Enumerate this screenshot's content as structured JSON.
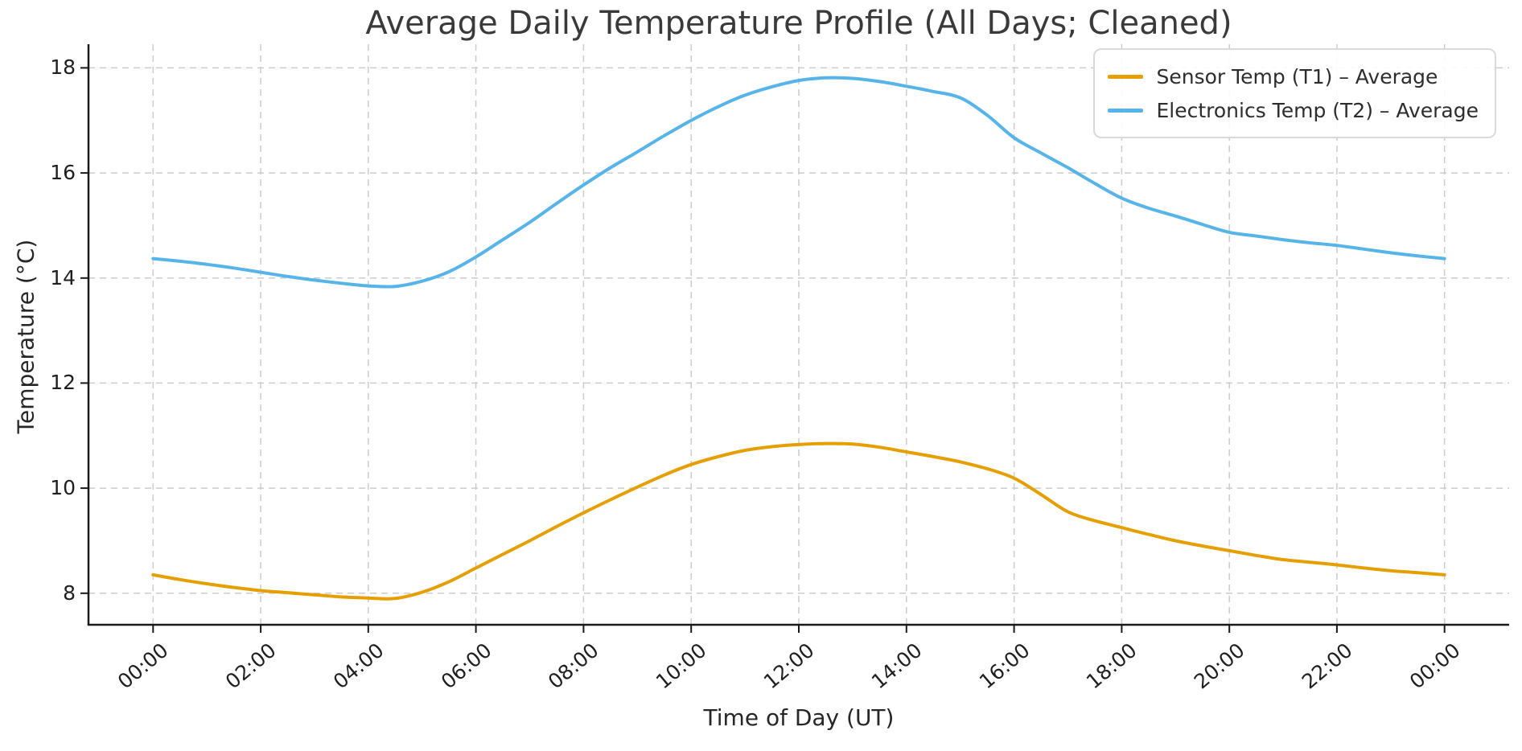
{
  "chart_data": {
    "type": "line",
    "title": "Average Daily Temperature Profile (All Days; Cleaned)",
    "xlabel": "Time of Day (UT)",
    "ylabel": "Temperature (°C)",
    "x_unit": "hours_of_day",
    "xlim": [
      -1.2,
      25.2
    ],
    "ylim": [
      7.4,
      18.45
    ],
    "grid": {
      "show": true,
      "color": "#cccccc",
      "dash": "8 6"
    },
    "axis_color": "#1a1a1a",
    "legend_position": "upper right",
    "x_ticks": [
      {
        "t": 0,
        "label": "00:00"
      },
      {
        "t": 2,
        "label": "02:00"
      },
      {
        "t": 4,
        "label": "04:00"
      },
      {
        "t": 6,
        "label": "06:00"
      },
      {
        "t": 8,
        "label": "08:00"
      },
      {
        "t": 10,
        "label": "10:00"
      },
      {
        "t": 12,
        "label": "12:00"
      },
      {
        "t": 14,
        "label": "14:00"
      },
      {
        "t": 16,
        "label": "16:00"
      },
      {
        "t": 18,
        "label": "18:00"
      },
      {
        "t": 20,
        "label": "20:00"
      },
      {
        "t": 22,
        "label": "22:00"
      },
      {
        "t": 24,
        "label": "00:00"
      }
    ],
    "y_ticks": [
      {
        "v": 8,
        "label": "8"
      },
      {
        "v": 10,
        "label": "10"
      },
      {
        "v": 12,
        "label": "12"
      },
      {
        "v": 14,
        "label": "14"
      },
      {
        "v": 16,
        "label": "16"
      },
      {
        "v": 18,
        "label": "18"
      }
    ],
    "x_hours": [
      0,
      0.5,
      1,
      1.5,
      2,
      2.5,
      3,
      3.5,
      4,
      4.5,
      5,
      5.5,
      6,
      6.5,
      7,
      7.5,
      8,
      8.5,
      9,
      9.5,
      10,
      10.5,
      11,
      11.5,
      12,
      12.5,
      13,
      13.5,
      14,
      14.5,
      15,
      15.5,
      16,
      16.5,
      17,
      17.5,
      18,
      18.5,
      19,
      19.5,
      20,
      20.5,
      21,
      21.5,
      22,
      22.5,
      23,
      23.5,
      24
    ],
    "series": [
      {
        "name": "Sensor Temp (T1) – Average",
        "color": "#E69F00",
        "values": [
          8.35,
          8.26,
          8.18,
          8.11,
          8.05,
          8.01,
          7.97,
          7.93,
          7.91,
          7.9,
          8.02,
          8.22,
          8.48,
          8.74,
          9.0,
          9.27,
          9.53,
          9.78,
          10.02,
          10.25,
          10.45,
          10.6,
          10.72,
          10.79,
          10.83,
          10.85,
          10.84,
          10.78,
          10.69,
          10.6,
          10.5,
          10.37,
          10.19,
          9.88,
          9.55,
          9.38,
          9.25,
          9.12,
          9.0,
          8.9,
          8.81,
          8.72,
          8.64,
          8.59,
          8.54,
          8.48,
          8.43,
          8.39,
          8.35
        ]
      },
      {
        "name": "Electronics Temp (T2) – Average",
        "color": "#56B4E9",
        "values": [
          14.37,
          14.32,
          14.26,
          14.19,
          14.11,
          14.03,
          13.96,
          13.9,
          13.85,
          13.84,
          13.94,
          14.12,
          14.4,
          14.73,
          15.06,
          15.42,
          15.77,
          16.1,
          16.4,
          16.71,
          17.0,
          17.26,
          17.48,
          17.64,
          17.76,
          17.81,
          17.8,
          17.74,
          17.65,
          17.55,
          17.43,
          17.1,
          16.67,
          16.38,
          16.1,
          15.8,
          15.52,
          15.33,
          15.18,
          15.02,
          14.87,
          14.8,
          14.73,
          14.67,
          14.62,
          14.55,
          14.48,
          14.42,
          14.37
        ]
      }
    ]
  }
}
